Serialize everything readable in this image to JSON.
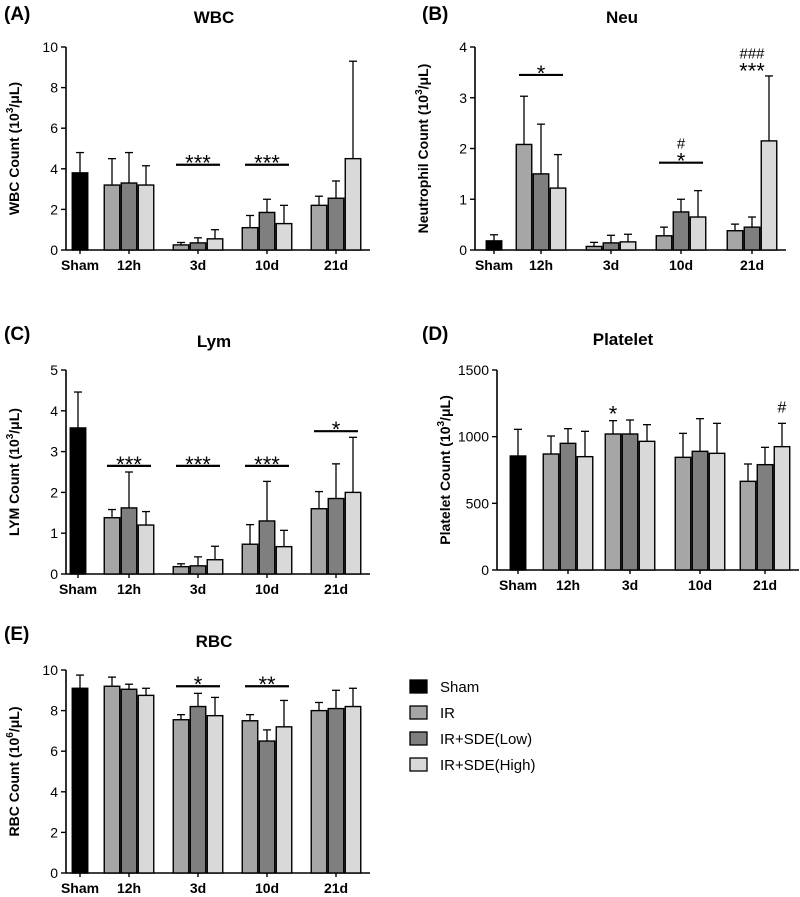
{
  "panels": [
    {
      "id": "A",
      "panel_label": "(A)",
      "title": "WBC",
      "ylabel_prefix": "WBC Count (10",
      "ylabel_sup": "3",
      "ylabel_suffix": "/μL)",
      "ylim": [
        0,
        10
      ],
      "yticks": [
        "0",
        "2",
        "4",
        "6",
        "8",
        "10"
      ],
      "categories": [
        "Sham",
        "12h",
        "3d",
        "10d",
        "21d"
      ],
      "sham": {
        "value": 3.8,
        "err": 1.0
      },
      "groups": [
        {
          "values": [
            3.2,
            3.3,
            3.2
          ],
          "errs": [
            1.3,
            1.5,
            0.95
          ]
        },
        {
          "values": [
            0.25,
            0.35,
            0.55
          ],
          "errs": [
            0.12,
            0.25,
            0.45
          ]
        },
        {
          "values": [
            1.1,
            1.85,
            1.3
          ],
          "errs": [
            0.6,
            0.65,
            0.9
          ]
        },
        {
          "values": [
            2.2,
            2.55,
            4.5
          ],
          "errs": [
            0.45,
            0.85,
            4.8
          ]
        }
      ],
      "annotations": [
        {
          "group": 1,
          "line": true,
          "text": "***",
          "y": 4.2
        },
        {
          "group": 2,
          "line": true,
          "text": "***",
          "y": 4.2
        }
      ]
    },
    {
      "id": "B",
      "panel_label": "(B)",
      "title": "Neu",
      "ylabel_prefix": "Neutrophil Count (10",
      "ylabel_sup": "3",
      "ylabel_suffix": "/μL)",
      "ylim": [
        0,
        4
      ],
      "yticks": [
        "0",
        "1",
        "2",
        "3",
        "4"
      ],
      "categories": [
        "Sham",
        "12h",
        "3d",
        "10d",
        "21d"
      ],
      "sham": {
        "value": 0.18,
        "err": 0.12
      },
      "groups": [
        {
          "values": [
            2.08,
            1.5,
            1.22
          ],
          "errs": [
            0.95,
            0.98,
            0.66
          ]
        },
        {
          "values": [
            0.07,
            0.14,
            0.16
          ],
          "errs": [
            0.08,
            0.15,
            0.15
          ]
        },
        {
          "values": [
            0.28,
            0.75,
            0.65
          ],
          "errs": [
            0.17,
            0.25,
            0.52
          ]
        },
        {
          "values": [
            0.38,
            0.45,
            2.15
          ],
          "errs": [
            0.13,
            0.2,
            1.28
          ]
        }
      ],
      "annotations": [
        {
          "group": 0,
          "line": true,
          "text": "*",
          "y": 3.45
        },
        {
          "group": 2,
          "line": true,
          "text": "*",
          "y": 1.72,
          "extra": "#"
        },
        {
          "group": 3,
          "line": false,
          "text": "***",
          "y": 3.5,
          "extra": "###"
        }
      ]
    },
    {
      "id": "C",
      "panel_label": "(C)",
      "title": "Lym",
      "ylabel_prefix": "LYM Count (10",
      "ylabel_sup": "3",
      "ylabel_suffix": "/μL)",
      "ylim": [
        0,
        5
      ],
      "yticks": [
        "0",
        "1",
        "2",
        "3",
        "4",
        "5"
      ],
      "categories": [
        "Sham",
        "12h",
        "3d",
        "10d",
        "21d"
      ],
      "sham": {
        "value": 3.58,
        "err": 0.88
      },
      "groups": [
        {
          "values": [
            1.38,
            1.62,
            1.2
          ],
          "errs": [
            0.2,
            0.88,
            0.33
          ]
        },
        {
          "values": [
            0.18,
            0.2,
            0.35
          ],
          "errs": [
            0.07,
            0.22,
            0.33
          ]
        },
        {
          "values": [
            0.73,
            1.3,
            0.67
          ],
          "errs": [
            0.48,
            0.97,
            0.4
          ]
        },
        {
          "values": [
            1.6,
            1.85,
            2.0
          ],
          "errs": [
            0.42,
            0.85,
            1.35
          ]
        }
      ],
      "annotations": [
        {
          "group": 0,
          "line": true,
          "text": "***",
          "y": 2.65
        },
        {
          "group": 1,
          "line": true,
          "text": "***",
          "y": 2.65
        },
        {
          "group": 2,
          "line": true,
          "text": "***",
          "y": 2.65
        },
        {
          "group": 3,
          "line": true,
          "text": "*",
          "y": 3.5
        }
      ]
    },
    {
      "id": "D",
      "panel_label": "(D)",
      "title": "Platelet",
      "ylabel_prefix": "Platelet Count (10",
      "ylabel_sup": "3",
      "ylabel_suffix": "/μL)",
      "ylim": [
        0,
        1500
      ],
      "yticks": [
        "0",
        "500",
        "1000",
        "1500"
      ],
      "categories": [
        "Sham",
        "12h",
        "3d",
        "10d",
        "21d"
      ],
      "sham": {
        "value": 855,
        "err": 200
      },
      "groups": [
        {
          "values": [
            870,
            950,
            850
          ],
          "errs": [
            135,
            110,
            190
          ]
        },
        {
          "values": [
            1020,
            1020,
            965
          ],
          "errs": [
            100,
            105,
            125
          ]
        },
        {
          "values": [
            845,
            890,
            875
          ],
          "errs": [
            180,
            245,
            225
          ]
        },
        {
          "values": [
            665,
            790,
            925
          ],
          "errs": [
            130,
            130,
            175
          ]
        }
      ],
      "annotations": [
        {
          "group": 1,
          "line": false,
          "text": "*",
          "y": 1160,
          "bar": 0
        },
        {
          "group": 3,
          "line": false,
          "text": "#",
          "y": 1160,
          "bar": 2
        }
      ]
    },
    {
      "id": "E",
      "panel_label": "(E)",
      "title": "RBC",
      "ylabel_prefix": "RBC Count (10",
      "ylabel_sup": "6",
      "ylabel_suffix": "/μL)",
      "ylim": [
        0,
        10
      ],
      "yticks": [
        "0",
        "2",
        "4",
        "6",
        "8",
        "10"
      ],
      "categories": [
        "Sham",
        "12h",
        "3d",
        "10d",
        "21d"
      ],
      "sham": {
        "value": 9.1,
        "err": 0.65
      },
      "groups": [
        {
          "values": [
            9.2,
            9.05,
            8.75
          ],
          "errs": [
            0.45,
            0.25,
            0.35
          ]
        },
        {
          "values": [
            7.55,
            8.2,
            7.75
          ],
          "errs": [
            0.25,
            0.65,
            0.9
          ]
        },
        {
          "values": [
            7.5,
            6.5,
            7.2
          ],
          "errs": [
            0.3,
            0.55,
            1.3
          ]
        },
        {
          "values": [
            8.0,
            8.1,
            8.2
          ],
          "errs": [
            0.4,
            0.9,
            0.9
          ]
        }
      ],
      "annotations": [
        {
          "group": 1,
          "line": true,
          "text": "*",
          "y": 9.2
        },
        {
          "group": 2,
          "line": true,
          "text": "**",
          "y": 9.2
        }
      ]
    }
  ],
  "legend": [
    {
      "label": "Sham",
      "color": "#000000"
    },
    {
      "label": "IR",
      "color": "#a6a6a6"
    },
    {
      "label": "IR+SDE(Low)",
      "color": "#7f7f7f"
    },
    {
      "label": "IR+SDE(High)",
      "color": "#d9d9d9"
    }
  ],
  "chart_data": [
    {
      "type": "bar",
      "title": "WBC",
      "ylabel": "WBC Count (10^3/μL)",
      "ylim": [
        0,
        10
      ],
      "categories": [
        "Sham",
        "12h",
        "3d",
        "10d",
        "21d"
      ],
      "series": [
        {
          "name": "Sham",
          "values": [
            3.8,
            null,
            null,
            null,
            null
          ]
        },
        {
          "name": "IR",
          "values": [
            null,
            3.2,
            0.25,
            1.1,
            2.2
          ]
        },
        {
          "name": "IR+SDE(Low)",
          "values": [
            null,
            3.3,
            0.35,
            1.85,
            2.55
          ]
        },
        {
          "name": "IR+SDE(High)",
          "values": [
            null,
            3.2,
            0.55,
            1.3,
            4.5
          ]
        }
      ]
    },
    {
      "type": "bar",
      "title": "Neu",
      "ylabel": "Neutrophil Count (10^3/μL)",
      "ylim": [
        0,
        4
      ],
      "categories": [
        "Sham",
        "12h",
        "3d",
        "10d",
        "21d"
      ],
      "series": [
        {
          "name": "Sham",
          "values": [
            0.18,
            null,
            null,
            null,
            null
          ]
        },
        {
          "name": "IR",
          "values": [
            null,
            2.08,
            0.07,
            0.28,
            0.38
          ]
        },
        {
          "name": "IR+SDE(Low)",
          "values": [
            null,
            1.5,
            0.14,
            0.75,
            0.45
          ]
        },
        {
          "name": "IR+SDE(High)",
          "values": [
            null,
            1.22,
            0.16,
            0.65,
            2.15
          ]
        }
      ]
    },
    {
      "type": "bar",
      "title": "Lym",
      "ylabel": "LYM Count (10^3/μL)",
      "ylim": [
        0,
        5
      ],
      "categories": [
        "Sham",
        "12h",
        "3d",
        "10d",
        "21d"
      ],
      "series": [
        {
          "name": "Sham",
          "values": [
            3.58,
            null,
            null,
            null,
            null
          ]
        },
        {
          "name": "IR",
          "values": [
            null,
            1.38,
            0.18,
            0.73,
            1.6
          ]
        },
        {
          "name": "IR+SDE(Low)",
          "values": [
            null,
            1.62,
            0.2,
            1.3,
            1.85
          ]
        },
        {
          "name": "IR+SDE(High)",
          "values": [
            null,
            1.2,
            0.35,
            0.67,
            2.0
          ]
        }
      ]
    },
    {
      "type": "bar",
      "title": "Platelet",
      "ylabel": "Platelet Count (10^3/μL)",
      "ylim": [
        0,
        1500
      ],
      "categories": [
        "Sham",
        "12h",
        "3d",
        "10d",
        "21d"
      ],
      "series": [
        {
          "name": "Sham",
          "values": [
            855,
            null,
            null,
            null,
            null
          ]
        },
        {
          "name": "IR",
          "values": [
            null,
            870,
            1020,
            845,
            665
          ]
        },
        {
          "name": "IR+SDE(Low)",
          "values": [
            null,
            950,
            1020,
            890,
            790
          ]
        },
        {
          "name": "IR+SDE(High)",
          "values": [
            null,
            850,
            965,
            875,
            925
          ]
        }
      ]
    },
    {
      "type": "bar",
      "title": "RBC",
      "ylabel": "RBC Count (10^6/μL)",
      "ylim": [
        0,
        10
      ],
      "categories": [
        "Sham",
        "12h",
        "3d",
        "10d",
        "21d"
      ],
      "series": [
        {
          "name": "Sham",
          "values": [
            9.1,
            null,
            null,
            null,
            null
          ]
        },
        {
          "name": "IR",
          "values": [
            null,
            9.2,
            7.55,
            7.5,
            8.0
          ]
        },
        {
          "name": "IR+SDE(Low)",
          "values": [
            null,
            9.05,
            8.2,
            6.5,
            8.1
          ]
        },
        {
          "name": "IR+SDE(High)",
          "values": [
            null,
            8.75,
            7.75,
            7.2,
            8.2
          ]
        }
      ]
    }
  ]
}
